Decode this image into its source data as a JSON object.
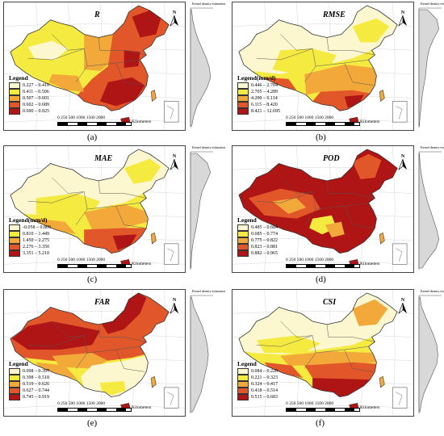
{
  "panels": [
    {
      "id": "a",
      "title": "R",
      "caption": "(a)",
      "legend_title": "Legend",
      "legend": [
        "0.227 – 0.410",
        "0.411 – 0.506",
        "0.507 – 0.601",
        "0.602 – 0.689",
        "0.690 – 0.925"
      ],
      "colors": [
        "#fdf7cf",
        "#f5ea3f",
        "#f3a93a",
        "#e2572a",
        "#b01515"
      ],
      "kde_profile": [
        0.05,
        0.1,
        0.2,
        0.35,
        0.55,
        0.75,
        0.9,
        0.95,
        0.8,
        0.55,
        0.3,
        0.15,
        0.06
      ]
    },
    {
      "id": "b",
      "title": "RMSE",
      "caption": "(b)",
      "legend_title": "Legend(mm/d)",
      "legend": [
        "0.446 – 2.704",
        "2.705 – 4.289",
        "4.290 – 6.114",
        "6.115 – 8.420",
        "8.421 – 12.695"
      ],
      "colors": [
        "#fdf7cf",
        "#f5ea3f",
        "#f3a93a",
        "#e2572a",
        "#b01515"
      ],
      "kde_profile": [
        0.4,
        0.85,
        0.95,
        0.7,
        0.5,
        0.4,
        0.35,
        0.3,
        0.22,
        0.15,
        0.1,
        0.05,
        0.02
      ]
    },
    {
      "id": "c",
      "title": "MAE",
      "caption": "(c)",
      "legend_title": "Legend(mm/d)",
      "legend": [
        "-0.058 – 0.809",
        "0.810 – 1.449",
        "1.450 – 2.275",
        "2.276 – 3.350",
        "3.351 – 5.210"
      ],
      "colors": [
        "#fdf7cf",
        "#f5ea3f",
        "#f3a93a",
        "#e2572a",
        "#b01515"
      ],
      "kde_profile": [
        0.3,
        0.8,
        0.95,
        0.75,
        0.55,
        0.45,
        0.4,
        0.33,
        0.25,
        0.15,
        0.08,
        0.04,
        0.02
      ]
    },
    {
      "id": "d",
      "title": "POD",
      "caption": "(d)",
      "legend_title": "Legend",
      "legend": [
        "0.485 – 0.684",
        "0.685 – 0.774",
        "0.775 – 0.822",
        "0.823 – 0.881",
        "0.882 – 0.965"
      ],
      "colors": [
        "#fdf7cf",
        "#f5ea3f",
        "#f3a93a",
        "#e2572a",
        "#b01515"
      ],
      "kde_profile": [
        0.02,
        0.05,
        0.1,
        0.18,
        0.28,
        0.4,
        0.55,
        0.7,
        0.85,
        0.95,
        0.8,
        0.45,
        0.15
      ]
    },
    {
      "id": "e",
      "title": "FAR",
      "caption": "(e)",
      "legend_title": "Legend",
      "legend": [
        "0.098 – 0.397",
        "0.398 – 0.518",
        "0.519 – 0.626",
        "0.627 – 0.744",
        "0.745 – 0.919"
      ],
      "colors": [
        "#fdf7cf",
        "#f5ea3f",
        "#f3a93a",
        "#e2572a",
        "#b01515"
      ],
      "kde_profile": [
        0.05,
        0.15,
        0.35,
        0.55,
        0.7,
        0.8,
        0.85,
        0.8,
        0.7,
        0.6,
        0.5,
        0.3,
        0.1
      ]
    },
    {
      "id": "f",
      "title": "CSI",
      "caption": "(f)",
      "legend_title": "Legend",
      "legend": [
        "0.084 – 0.220",
        "0.221 – 0.323",
        "0.324 – 0.417",
        "0.418 – 0.514",
        "0.515 – 0.683"
      ],
      "colors": [
        "#fdf7cf",
        "#f5ea3f",
        "#f3a93a",
        "#e2572a",
        "#b01515"
      ],
      "kde_profile": [
        0.05,
        0.12,
        0.3,
        0.5,
        0.7,
        0.85,
        0.9,
        0.85,
        0.65,
        0.45,
        0.25,
        0.12,
        0.05
      ]
    }
  ],
  "common": {
    "scale_ticks": "0  250 500   1000   1500   2000",
    "scale_unit": "Kilometers",
    "north": "N",
    "kde_title": "Kernel density estimation"
  }
}
